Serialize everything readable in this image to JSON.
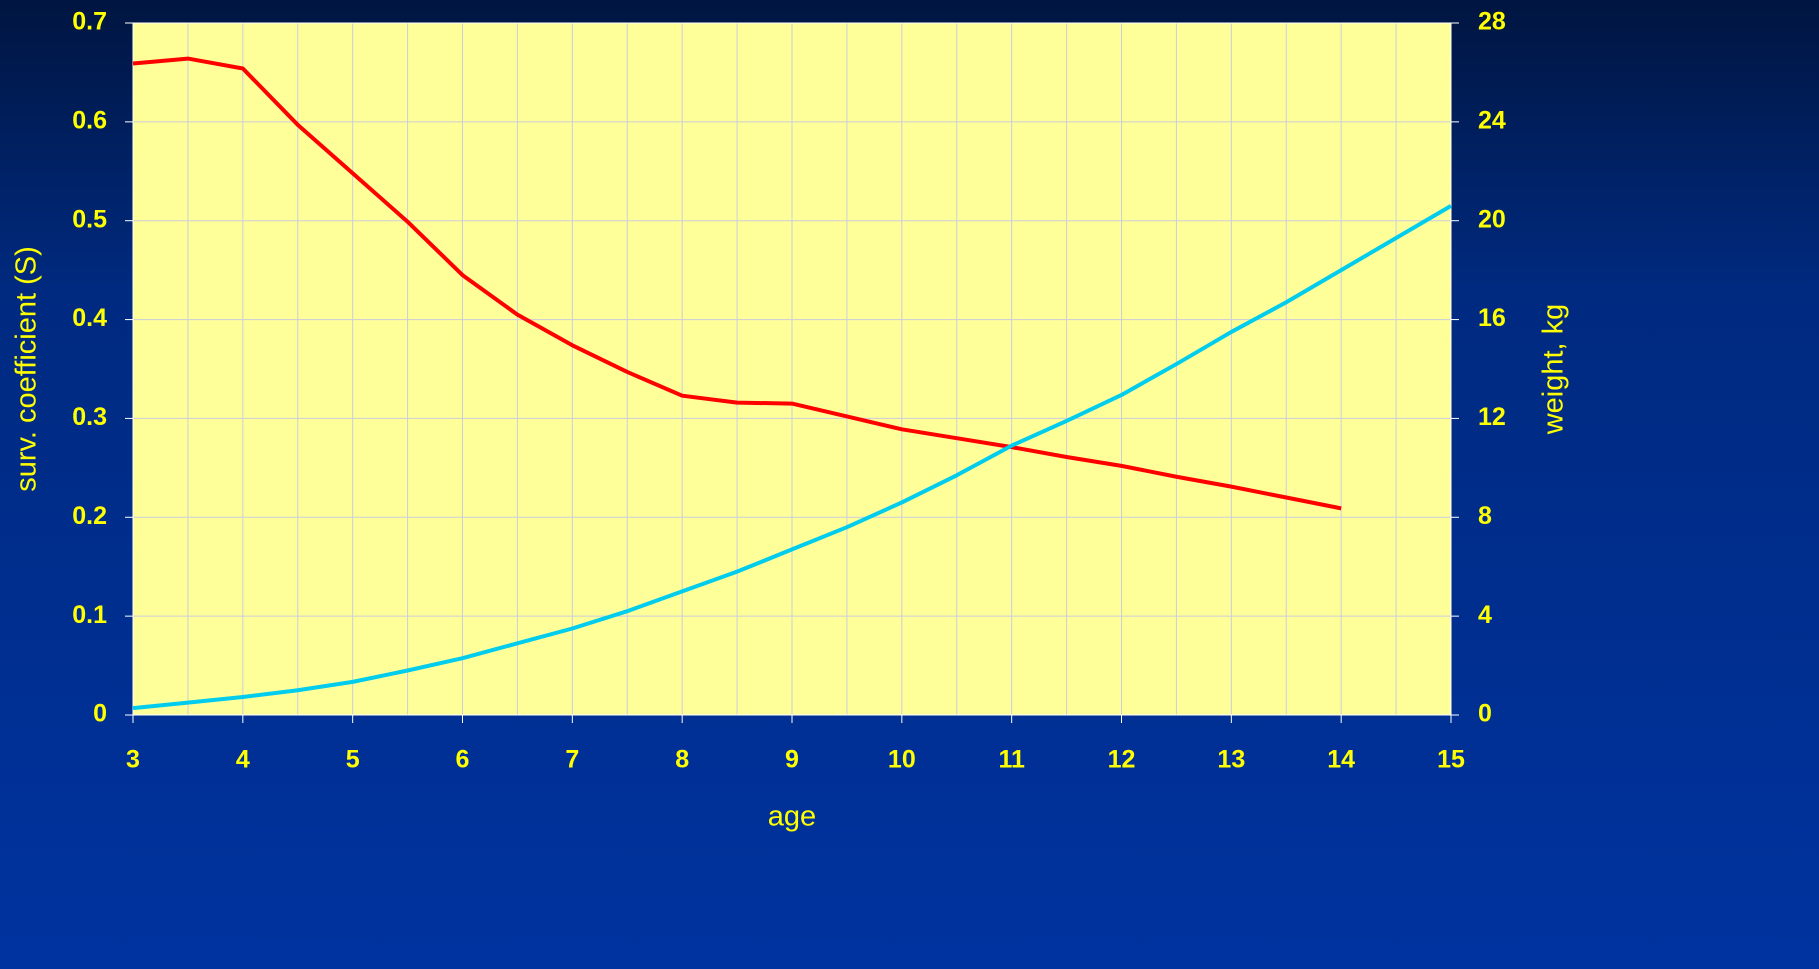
{
  "chart_data": {
    "type": "line",
    "x_label": "age",
    "y_label": "surv. coefficient (S)",
    "y2_label": "weight, kg",
    "x": [
      3,
      3.5,
      4,
      4.5,
      5,
      5.5,
      6,
      6.5,
      7,
      7.5,
      8,
      8.5,
      9,
      9.5,
      10,
      10.5,
      11,
      11.5,
      12,
      12.5,
      13,
      13.5,
      14,
      14.5,
      15
    ],
    "series": [
      {
        "color": "#ff0000",
        "values": [
          0.659,
          0.664,
          0.654,
          0.597,
          0.548,
          0.499,
          0.445,
          0.405,
          0.374,
          0.347,
          0.323,
          0.316,
          0.315,
          0.302,
          0.289,
          0.28,
          0.271,
          0.261,
          0.252,
          0.241,
          0.231,
          0.22,
          0.209,
          null,
          null
        ]
      },
      {
        "color": "#00ccee",
        "axis": "y2",
        "values": [
          0.28,
          0.5,
          0.73,
          1.0,
          1.34,
          1.8,
          2.3,
          2.9,
          3.5,
          4.2,
          5.0,
          5.8,
          6.7,
          7.6,
          8.6,
          9.7,
          10.9,
          11.9,
          12.95,
          14.2,
          15.5,
          16.7,
          18.0,
          19.3,
          20.6
        ]
      }
    ],
    "xlim": [
      3,
      15
    ],
    "xticks": [
      3,
      4,
      5,
      6,
      7,
      8,
      9,
      10,
      11,
      12,
      13,
      14,
      15
    ],
    "ylim": [
      0,
      0.7
    ],
    "yticks": [
      0,
      0.1,
      0.2,
      0.3,
      0.4,
      0.5,
      0.6,
      0.7
    ],
    "y2lim": [
      0,
      28
    ],
    "y2ticks": [
      0,
      4,
      8,
      12,
      16,
      20,
      24,
      28
    ],
    "grid": true
  }
}
